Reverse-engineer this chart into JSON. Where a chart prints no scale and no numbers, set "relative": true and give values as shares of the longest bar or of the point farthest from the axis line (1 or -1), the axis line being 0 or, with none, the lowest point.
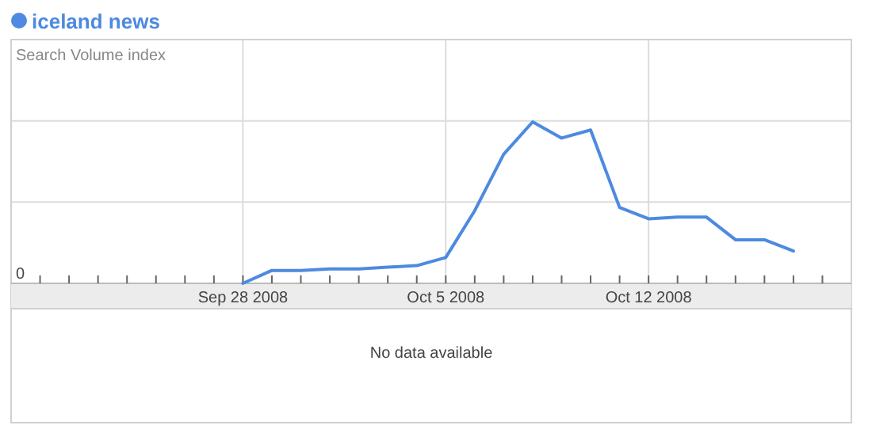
{
  "chart_data": {
    "type": "line",
    "ylabel": "Search Volume index",
    "relative": true,
    "legend": "top left",
    "grid": true,
    "marker": "none",
    "line_style": "solid",
    "x": [
      "2008-09-28",
      "2008-09-29",
      "2008-09-30",
      "2008-10-01",
      "2008-10-02",
      "2008-10-03",
      "2008-10-04",
      "2008-10-05",
      "2008-10-06",
      "2008-10-07",
      "2008-10-08",
      "2008-10-09",
      "2008-10-10",
      "2008-10-11",
      "2008-10-12",
      "2008-10-13",
      "2008-10-14",
      "2008-10-15",
      "2008-10-16",
      "2008-10-17"
    ],
    "series": [
      {
        "name": "iceland news",
        "color": "#4d8ae0",
        "values": [
          0,
          0.08,
          0.08,
          0.09,
          0.09,
          0.1,
          0.11,
          0.16,
          0.45,
          0.8,
          1,
          0.9,
          0.95,
          0.47,
          0.4,
          0.41,
          0.41,
          0.27,
          0.27,
          0.2
        ]
      }
    ],
    "xlim": [
      "2008-09-20",
      "2008-10-19"
    ],
    "xticks": [
      {
        "value": "2008-09-21",
        "label": null
      },
      {
        "value": "2008-09-22",
        "label": null
      },
      {
        "value": "2008-09-23",
        "label": null
      },
      {
        "value": "2008-09-24",
        "label": null
      },
      {
        "value": "2008-09-25",
        "label": null
      },
      {
        "value": "2008-09-26",
        "label": null
      },
      {
        "value": "2008-09-27",
        "label": null
      },
      {
        "value": "2008-09-28",
        "label": "Sep 28 2008"
      },
      {
        "value": "2008-09-29",
        "label": null
      },
      {
        "value": "2008-09-30",
        "label": null
      },
      {
        "value": "2008-10-01",
        "label": null
      },
      {
        "value": "2008-10-02",
        "label": null
      },
      {
        "value": "2008-10-03",
        "label": null
      },
      {
        "value": "2008-10-04",
        "label": null
      },
      {
        "value": "2008-10-05",
        "label": "Oct 5 2008"
      },
      {
        "value": "2008-10-06",
        "label": null
      },
      {
        "value": "2008-10-07",
        "label": null
      },
      {
        "value": "2008-10-08",
        "label": null
      },
      {
        "value": "2008-10-09",
        "label": null
      },
      {
        "value": "2008-10-10",
        "label": null
      },
      {
        "value": "2008-10-11",
        "label": null
      },
      {
        "value": "2008-10-12",
        "label": "Oct 12 2008"
      },
      {
        "value": "2008-10-13",
        "label": null
      },
      {
        "value": "2008-10-14",
        "label": null
      },
      {
        "value": "2008-10-15",
        "label": null
      },
      {
        "value": "2008-10-16",
        "label": null
      },
      {
        "value": "2008-10-17",
        "label": null
      },
      {
        "value": "2008-10-18",
        "label": null
      }
    ],
    "annotations": [
      "0",
      "No data available"
    ]
  }
}
